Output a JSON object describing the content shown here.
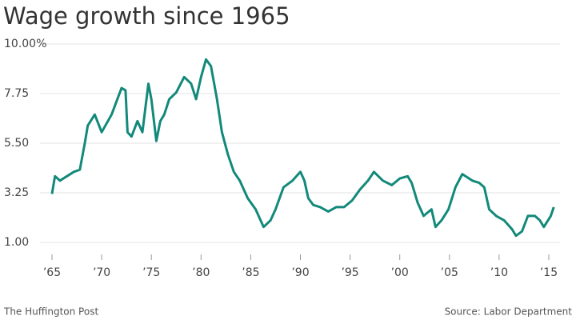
{
  "chart_data": {
    "type": "line",
    "title": "Wage growth since 1965",
    "source": "Source: Labor Department",
    "publisher": "The Huffington Post",
    "xlim": [
      1965,
      2015
    ],
    "ylim": [
      1,
      10
    ],
    "xticks": [
      {
        "value": 1965,
        "label": "’65"
      },
      {
        "value": 1970,
        "label": "’70"
      },
      {
        "value": 1975,
        "label": "’75"
      },
      {
        "value": 1980,
        "label": "’80"
      },
      {
        "value": 1985,
        "label": "’85"
      },
      {
        "value": 1990,
        "label": "’90"
      },
      {
        "value": 1995,
        "label": "’95"
      },
      {
        "value": 2000,
        "label": "’00"
      },
      {
        "value": 2005,
        "label": "’05"
      },
      {
        "value": 2010,
        "label": "’10"
      },
      {
        "value": 2015,
        "label": "’15"
      }
    ],
    "yticks": [
      {
        "value": 1,
        "label": "1.00"
      },
      {
        "value": 3.25,
        "label": "3.25"
      },
      {
        "value": 5.5,
        "label": "5.50"
      },
      {
        "value": 7.75,
        "label": "7.75"
      },
      {
        "value": 10,
        "label": "10.00%"
      }
    ],
    "grid": true,
    "series": [
      {
        "color": "#12897a",
        "x": [
          1965,
          1965.3,
          1965.8,
          1966.5,
          1967.2,
          1967.8,
          1968.3,
          1968.6,
          1969.3,
          1970,
          1971,
          1972,
          1972.4,
          1972.6,
          1973,
          1973.6,
          1974.1,
          1974.7,
          1975,
          1975.5,
          1975.9,
          1976.3,
          1976.8,
          1977.5,
          1978.3,
          1979,
          1979.5,
          1980,
          1980.5,
          1981,
          1981.6,
          1982.1,
          1982.7,
          1983.3,
          1983.9,
          1984.7,
          1985.5,
          1986.3,
          1987,
          1987.5,
          1988.3,
          1989.2,
          1990,
          1990.4,
          1990.8,
          1991.3,
          1992,
          1992.8,
          1993.6,
          1994.4,
          1995.2,
          1996,
          1996.8,
          1997.4,
          1998.3,
          1999.2,
          2000,
          2000.8,
          2001.2,
          2001.8,
          2002.4,
          2003.2,
          2003.6,
          2004.2,
          2004.9,
          2005.6,
          2006.3,
          2007.3,
          2008,
          2008.5,
          2009,
          2009.7,
          2010.5,
          2011.3,
          2011.7,
          2012.3,
          2012.9,
          2013.6,
          2014.1,
          2014.5,
          2015.2,
          2015.5
        ],
        "values": [
          3.2,
          4.0,
          3.8,
          4.0,
          4.2,
          4.3,
          5.5,
          6.3,
          6.8,
          6.0,
          6.8,
          8.0,
          7.9,
          6.0,
          5.8,
          6.5,
          6.0,
          8.2,
          7.5,
          5.6,
          6.5,
          6.8,
          7.5,
          7.8,
          8.5,
          8.2,
          7.5,
          8.5,
          9.3,
          9.0,
          7.5,
          6.0,
          5.0,
          4.2,
          3.8,
          3.0,
          2.5,
          1.7,
          2.0,
          2.5,
          3.5,
          3.8,
          4.2,
          3.8,
          3.0,
          2.7,
          2.6,
          2.4,
          2.6,
          2.6,
          2.9,
          3.4,
          3.8,
          4.2,
          3.8,
          3.6,
          3.9,
          4.0,
          3.7,
          2.8,
          2.2,
          2.5,
          1.7,
          2.0,
          2.5,
          3.5,
          4.1,
          3.8,
          3.7,
          3.5,
          2.5,
          2.2,
          2.0,
          1.6,
          1.3,
          1.5,
          2.2,
          2.2,
          2.0,
          1.7,
          2.2,
          2.6
        ]
      }
    ]
  }
}
